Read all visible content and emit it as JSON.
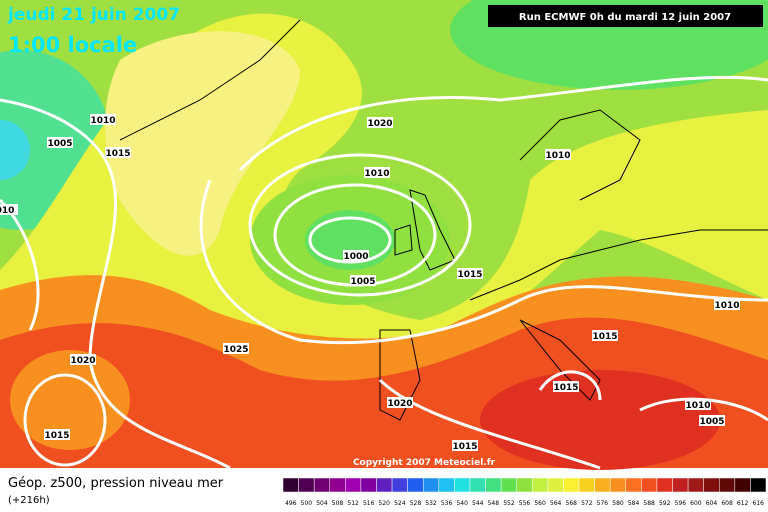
{
  "header": {
    "date": "jeudi 21 juin 2007",
    "time": "1:00 locale",
    "run": "Run ECMWF 0h du mardi 12 juin 2007"
  },
  "isobar_labels": [
    "1010",
    "1005",
    "1015",
    "010",
    "1020",
    "1010",
    "1010",
    "1000",
    "1005",
    "1015",
    "1010",
    "1015",
    "1020",
    "1025",
    "1015",
    "1020",
    "1010",
    "1005",
    "1015",
    "1015"
  ],
  "copyright": "Copyright 2007 Meteociel.fr",
  "legend": {
    "title": "Géop. z500, pression niveau mer",
    "lead": "(+216h)",
    "scale": [
      {
        "label": "496",
        "color": "#300030"
      },
      {
        "label": "500",
        "color": "#500050"
      },
      {
        "label": "504",
        "color": "#700070"
      },
      {
        "label": "508",
        "color": "#900090"
      },
      {
        "label": "512",
        "color": "#a000b0"
      },
      {
        "label": "516",
        "color": "#8000a0"
      },
      {
        "label": "520",
        "color": "#6020c0"
      },
      {
        "label": "524",
        "color": "#4040e0"
      },
      {
        "label": "528",
        "color": "#2060f0"
      },
      {
        "label": "532",
        "color": "#2090f0"
      },
      {
        "label": "536",
        "color": "#20c0f0"
      },
      {
        "label": "540",
        "color": "#20e0e0"
      },
      {
        "label": "544",
        "color": "#30e0b0"
      },
      {
        "label": "548",
        "color": "#40e080"
      },
      {
        "label": "552",
        "color": "#60e050"
      },
      {
        "label": "556",
        "color": "#90e040"
      },
      {
        "label": "560",
        "color": "#c0f040"
      },
      {
        "label": "564",
        "color": "#e0f040"
      },
      {
        "label": "568",
        "color": "#f8f030"
      },
      {
        "label": "572",
        "color": "#f8d020"
      },
      {
        "label": "576",
        "color": "#f8b020"
      },
      {
        "label": "580",
        "color": "#f89020"
      },
      {
        "label": "584",
        "color": "#f87020"
      },
      {
        "label": "588",
        "color": "#f05020"
      },
      {
        "label": "592",
        "color": "#e03020"
      },
      {
        "label": "596",
        "color": "#c02020"
      },
      {
        "label": "600",
        "color": "#a01818"
      },
      {
        "label": "604",
        "color": "#801010"
      },
      {
        "label": "608",
        "color": "#600808"
      },
      {
        "label": "612",
        "color": "#400000"
      },
      {
        "label": "616",
        "color": "#000000"
      }
    ]
  }
}
